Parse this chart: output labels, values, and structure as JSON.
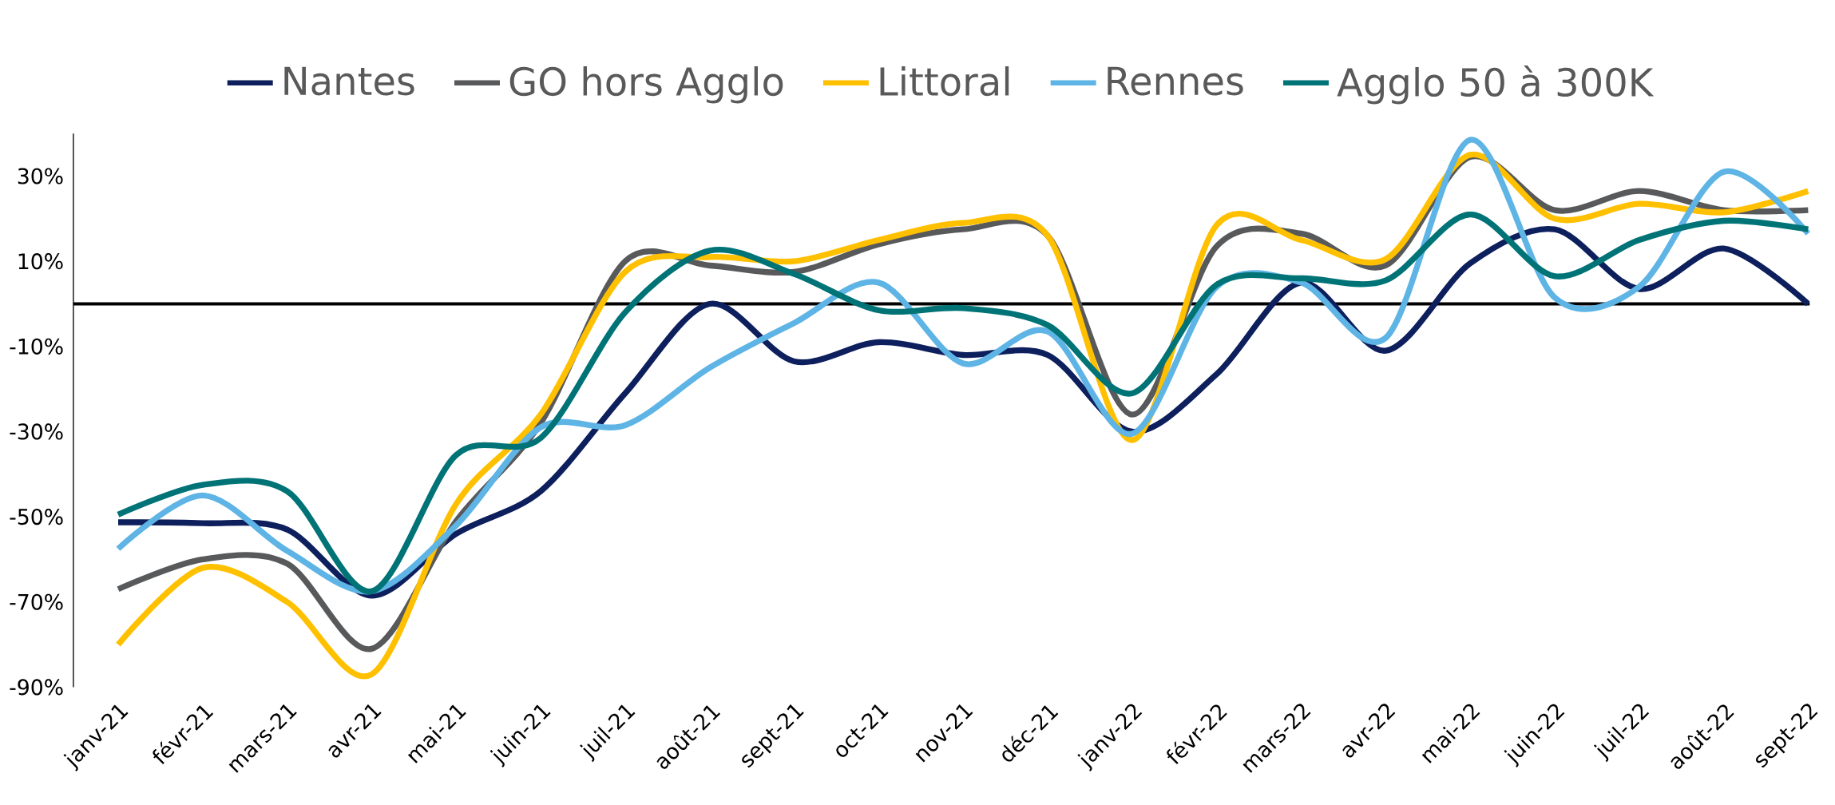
{
  "chart_data": {
    "type": "line",
    "categories": [
      "janv-21",
      "févr-21",
      "mars-21",
      "avr-21",
      "mai-21",
      "juin-21",
      "juil-21",
      "août-21",
      "sept-21",
      "oct-21",
      "nov-21",
      "déc-21",
      "janv-22",
      "févr-22",
      "mars-22",
      "avr-22",
      "mai-22",
      "juin-22",
      "juil-22",
      "août-22",
      "sept-22"
    ],
    "series": [
      {
        "name": "Nantes",
        "color": "#0d1f5c",
        "values": [
          -51.3,
          -51.5,
          -53,
          -68.5,
          -54,
          -44,
          -21,
          0,
          -13.5,
          -9,
          -12,
          -12,
          -30,
          -16.5,
          5,
          -11,
          9.5,
          17.5,
          3.5,
          13,
          0
        ]
      },
      {
        "name": "GO hors Agglo",
        "color": "#58595b",
        "values": [
          -67,
          -60,
          -61,
          -81,
          -51,
          -28,
          10,
          9,
          7.5,
          14,
          17.5,
          16,
          -26,
          13.5,
          16.5,
          9,
          34.5,
          22,
          26.5,
          22,
          22
        ]
      },
      {
        "name": "Littoral",
        "color": "#ffc000",
        "values": [
          -80,
          -62,
          -70,
          -87,
          -47,
          -26,
          7.5,
          11,
          10,
          15,
          19,
          16,
          -32,
          18.5,
          15,
          10.5,
          35,
          20,
          23.5,
          21.5,
          26.5
        ]
      },
      {
        "name": "Rennes",
        "color": "#5db4e5",
        "values": [
          -57.5,
          -45,
          -58,
          -67.5,
          -52,
          -29,
          -28.5,
          -15,
          -4.5,
          5,
          -14,
          -6.5,
          -30.5,
          4,
          5,
          -8,
          38.5,
          1.5,
          4,
          31,
          16.5
        ]
      },
      {
        "name": "Agglo 50 à 300K",
        "color": "#007377",
        "values": [
          -49.5,
          -42.5,
          -44,
          -67.5,
          -35.5,
          -31.5,
          -2,
          12.5,
          7,
          -1.5,
          -1,
          -5,
          -21,
          4.5,
          6,
          5.5,
          21,
          6.5,
          15,
          19.5,
          17.5
        ]
      }
    ],
    "ylim": [
      -90,
      40
    ],
    "yticks": [
      {
        "value": -90,
        "label": "-90%"
      },
      {
        "value": -70,
        "label": "-70%"
      },
      {
        "value": -50,
        "label": "-50%"
      },
      {
        "value": -30,
        "label": "-30%"
      },
      {
        "value": -10,
        "label": "-10%"
      },
      {
        "value": 10,
        "label": "10%"
      },
      {
        "value": 30,
        "label": "30%"
      }
    ],
    "ref_lines": [
      {
        "axis": "y",
        "value": 0,
        "color": "#000000"
      }
    ],
    "legend": "top",
    "grid": false,
    "marker": "none",
    "line_style": "solid"
  }
}
